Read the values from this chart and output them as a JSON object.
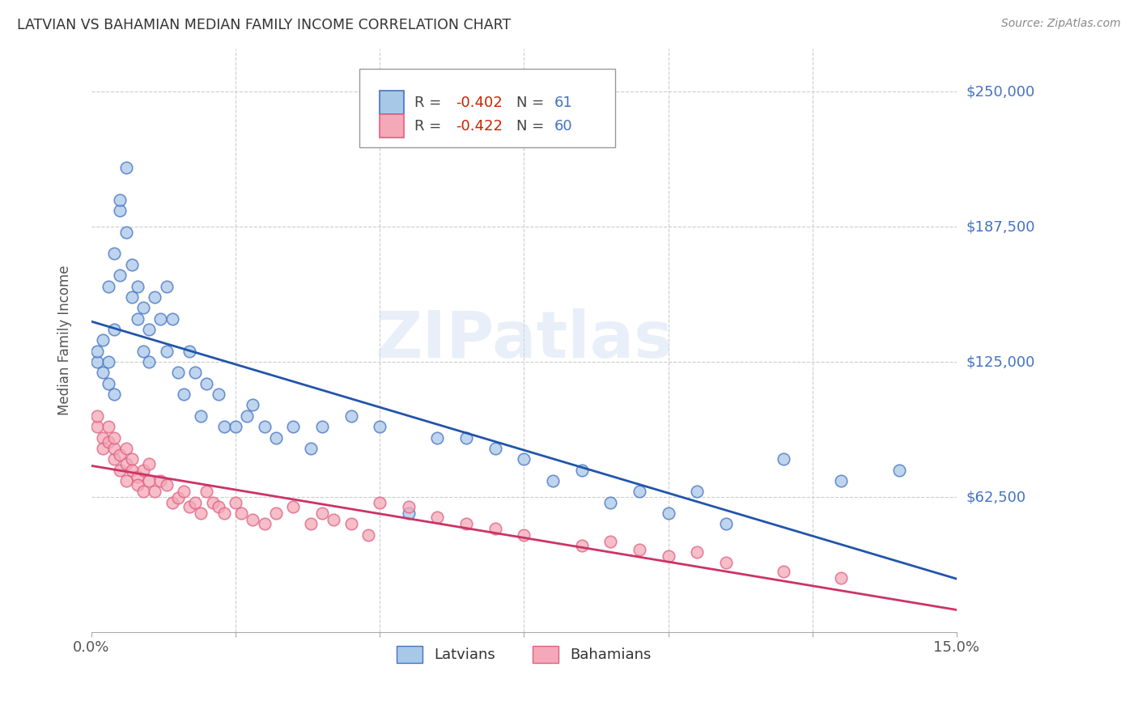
{
  "title": "LATVIAN VS BAHAMIAN MEDIAN FAMILY INCOME CORRELATION CHART",
  "source": "Source: ZipAtlas.com",
  "ylabel": "Median Family Income",
  "yticks": [
    0,
    62500,
    125000,
    187500,
    250000
  ],
  "ytick_labels": [
    "",
    "$62,500",
    "$125,000",
    "$187,500",
    "$250,000"
  ],
  "xmin": 0.0,
  "xmax": 0.15,
  "ymin": 0,
  "ymax": 270000,
  "latvian_scatter_color": "#a8c8e8",
  "latvian_edge_color": "#4472C4",
  "bahamian_scatter_color": "#f4a8b8",
  "bahamian_edge_color": "#e06080",
  "latvian_line_color": "#2255aa",
  "bahamian_line_color": "#cc3366",
  "latvian_r": "-0.402",
  "latvian_n": "61",
  "bahamian_r": "-0.422",
  "bahamian_n": "60",
  "latvians_x": [
    0.001,
    0.001,
    0.002,
    0.002,
    0.003,
    0.003,
    0.003,
    0.004,
    0.004,
    0.004,
    0.005,
    0.005,
    0.005,
    0.006,
    0.006,
    0.007,
    0.007,
    0.008,
    0.008,
    0.009,
    0.009,
    0.01,
    0.01,
    0.011,
    0.012,
    0.013,
    0.013,
    0.014,
    0.015,
    0.016,
    0.017,
    0.018,
    0.019,
    0.02,
    0.022,
    0.023,
    0.025,
    0.027,
    0.028,
    0.03,
    0.032,
    0.035,
    0.038,
    0.04,
    0.045,
    0.05,
    0.055,
    0.06,
    0.065,
    0.07,
    0.075,
    0.08,
    0.085,
    0.09,
    0.095,
    0.1,
    0.105,
    0.11,
    0.12,
    0.13,
    0.14
  ],
  "latvians_y": [
    125000,
    130000,
    120000,
    135000,
    115000,
    125000,
    160000,
    110000,
    140000,
    175000,
    195000,
    165000,
    200000,
    215000,
    185000,
    170000,
    155000,
    145000,
    160000,
    130000,
    150000,
    140000,
    125000,
    155000,
    145000,
    160000,
    130000,
    145000,
    120000,
    110000,
    130000,
    120000,
    100000,
    115000,
    110000,
    95000,
    95000,
    100000,
    105000,
    95000,
    90000,
    95000,
    85000,
    95000,
    100000,
    95000,
    55000,
    90000,
    90000,
    85000,
    80000,
    70000,
    75000,
    60000,
    65000,
    55000,
    65000,
    50000,
    80000,
    70000,
    75000
  ],
  "bahamians_x": [
    0.001,
    0.001,
    0.002,
    0.002,
    0.003,
    0.003,
    0.004,
    0.004,
    0.004,
    0.005,
    0.005,
    0.006,
    0.006,
    0.006,
    0.007,
    0.007,
    0.008,
    0.008,
    0.009,
    0.009,
    0.01,
    0.01,
    0.011,
    0.012,
    0.013,
    0.014,
    0.015,
    0.016,
    0.017,
    0.018,
    0.019,
    0.02,
    0.021,
    0.022,
    0.023,
    0.025,
    0.026,
    0.028,
    0.03,
    0.032,
    0.035,
    0.038,
    0.04,
    0.042,
    0.045,
    0.048,
    0.05,
    0.055,
    0.06,
    0.065,
    0.07,
    0.075,
    0.085,
    0.09,
    0.095,
    0.1,
    0.105,
    0.11,
    0.12,
    0.13
  ],
  "bahamians_y": [
    95000,
    100000,
    90000,
    85000,
    88000,
    95000,
    80000,
    85000,
    90000,
    75000,
    82000,
    78000,
    85000,
    70000,
    80000,
    75000,
    72000,
    68000,
    75000,
    65000,
    70000,
    78000,
    65000,
    70000,
    68000,
    60000,
    62000,
    65000,
    58000,
    60000,
    55000,
    65000,
    60000,
    58000,
    55000,
    60000,
    55000,
    52000,
    50000,
    55000,
    58000,
    50000,
    55000,
    52000,
    50000,
    45000,
    60000,
    58000,
    53000,
    50000,
    48000,
    45000,
    40000,
    42000,
    38000,
    35000,
    37000,
    32000,
    28000,
    25000
  ]
}
